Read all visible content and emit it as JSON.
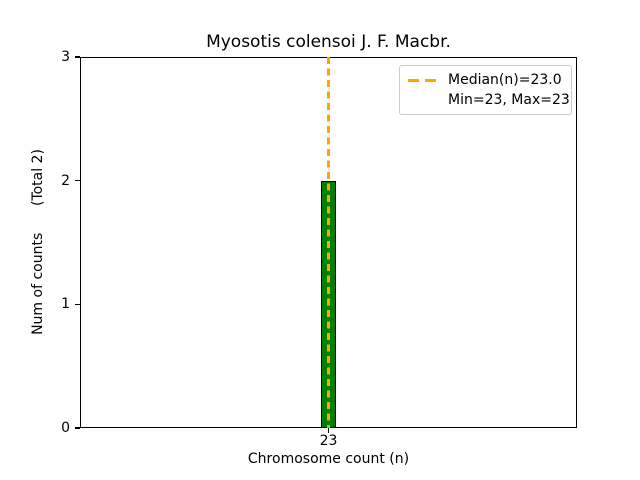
{
  "chart_data": {
    "type": "bar",
    "title": "Myosotis colensoi J. F. Macbr.",
    "xlabel": "Chromosome count (n)",
    "ylabel": "Num of counts      (Total 2)",
    "categories": [
      "23"
    ],
    "values": [
      2
    ],
    "ylim": [
      0,
      3
    ],
    "yticks": [
      0,
      1,
      2,
      3
    ],
    "total_count": 2,
    "grid": false,
    "colors": {
      "bar_fill": "#008000",
      "bar_edge": "#000000",
      "median_line": "#FFA500",
      "axis": "#000000",
      "legend_border": "#cccccc"
    },
    "median_line": {
      "x_category": "23",
      "style": "dashed",
      "color": "#FFA500"
    },
    "legend": {
      "position": "upper right",
      "entries": [
        {
          "handle": "dashed-line",
          "label": "Median(n)=23.0"
        },
        {
          "handle": "none",
          "label": "Min=23, Max=23"
        }
      ]
    }
  }
}
